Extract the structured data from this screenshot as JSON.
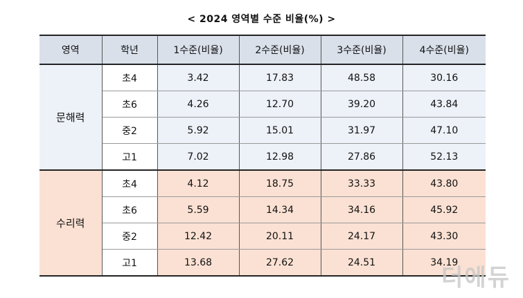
{
  "title": "< 2024 영역별 수준 비율(%) >",
  "headers": [
    "영역",
    "학년",
    "1수준(비율)",
    "2수준(비율)",
    "3수준(비율)",
    "4수준(비율)"
  ],
  "sections": [
    {
      "area": "문해력",
      "rows": [
        {
          "grade": "초4",
          "values": [
            "3.42",
            "17.83",
            "48.58",
            "30.16"
          ]
        },
        {
          "grade": "초6",
          "values": [
            "4.26",
            "12.70",
            "39.20",
            "43.84"
          ]
        },
        {
          "grade": "중2",
          "values": [
            "5.92",
            "15.01",
            "31.97",
            "47.10"
          ]
        },
        {
          "grade": "고1",
          "values": [
            "7.02",
            "12.98",
            "27.86",
            "52.13"
          ]
        }
      ]
    },
    {
      "area": "수리력",
      "rows": [
        {
          "grade": "초4",
          "values": [
            "4.12",
            "18.75",
            "33.33",
            "43.80"
          ]
        },
        {
          "grade": "초6",
          "values": [
            "5.59",
            "14.34",
            "34.16",
            "45.92"
          ]
        },
        {
          "grade": "중2",
          "values": [
            "12.42",
            "20.11",
            "24.17",
            "43.30"
          ]
        },
        {
          "grade": "고1",
          "values": [
            "13.68",
            "27.62",
            "24.51",
            "34.19"
          ]
        }
      ]
    }
  ],
  "watermark": "더에듀",
  "colors": {
    "header_bg": "#d9e0ea",
    "literacy_bg": "#edf1f8",
    "numeracy_bg": "#fbe1d3"
  }
}
